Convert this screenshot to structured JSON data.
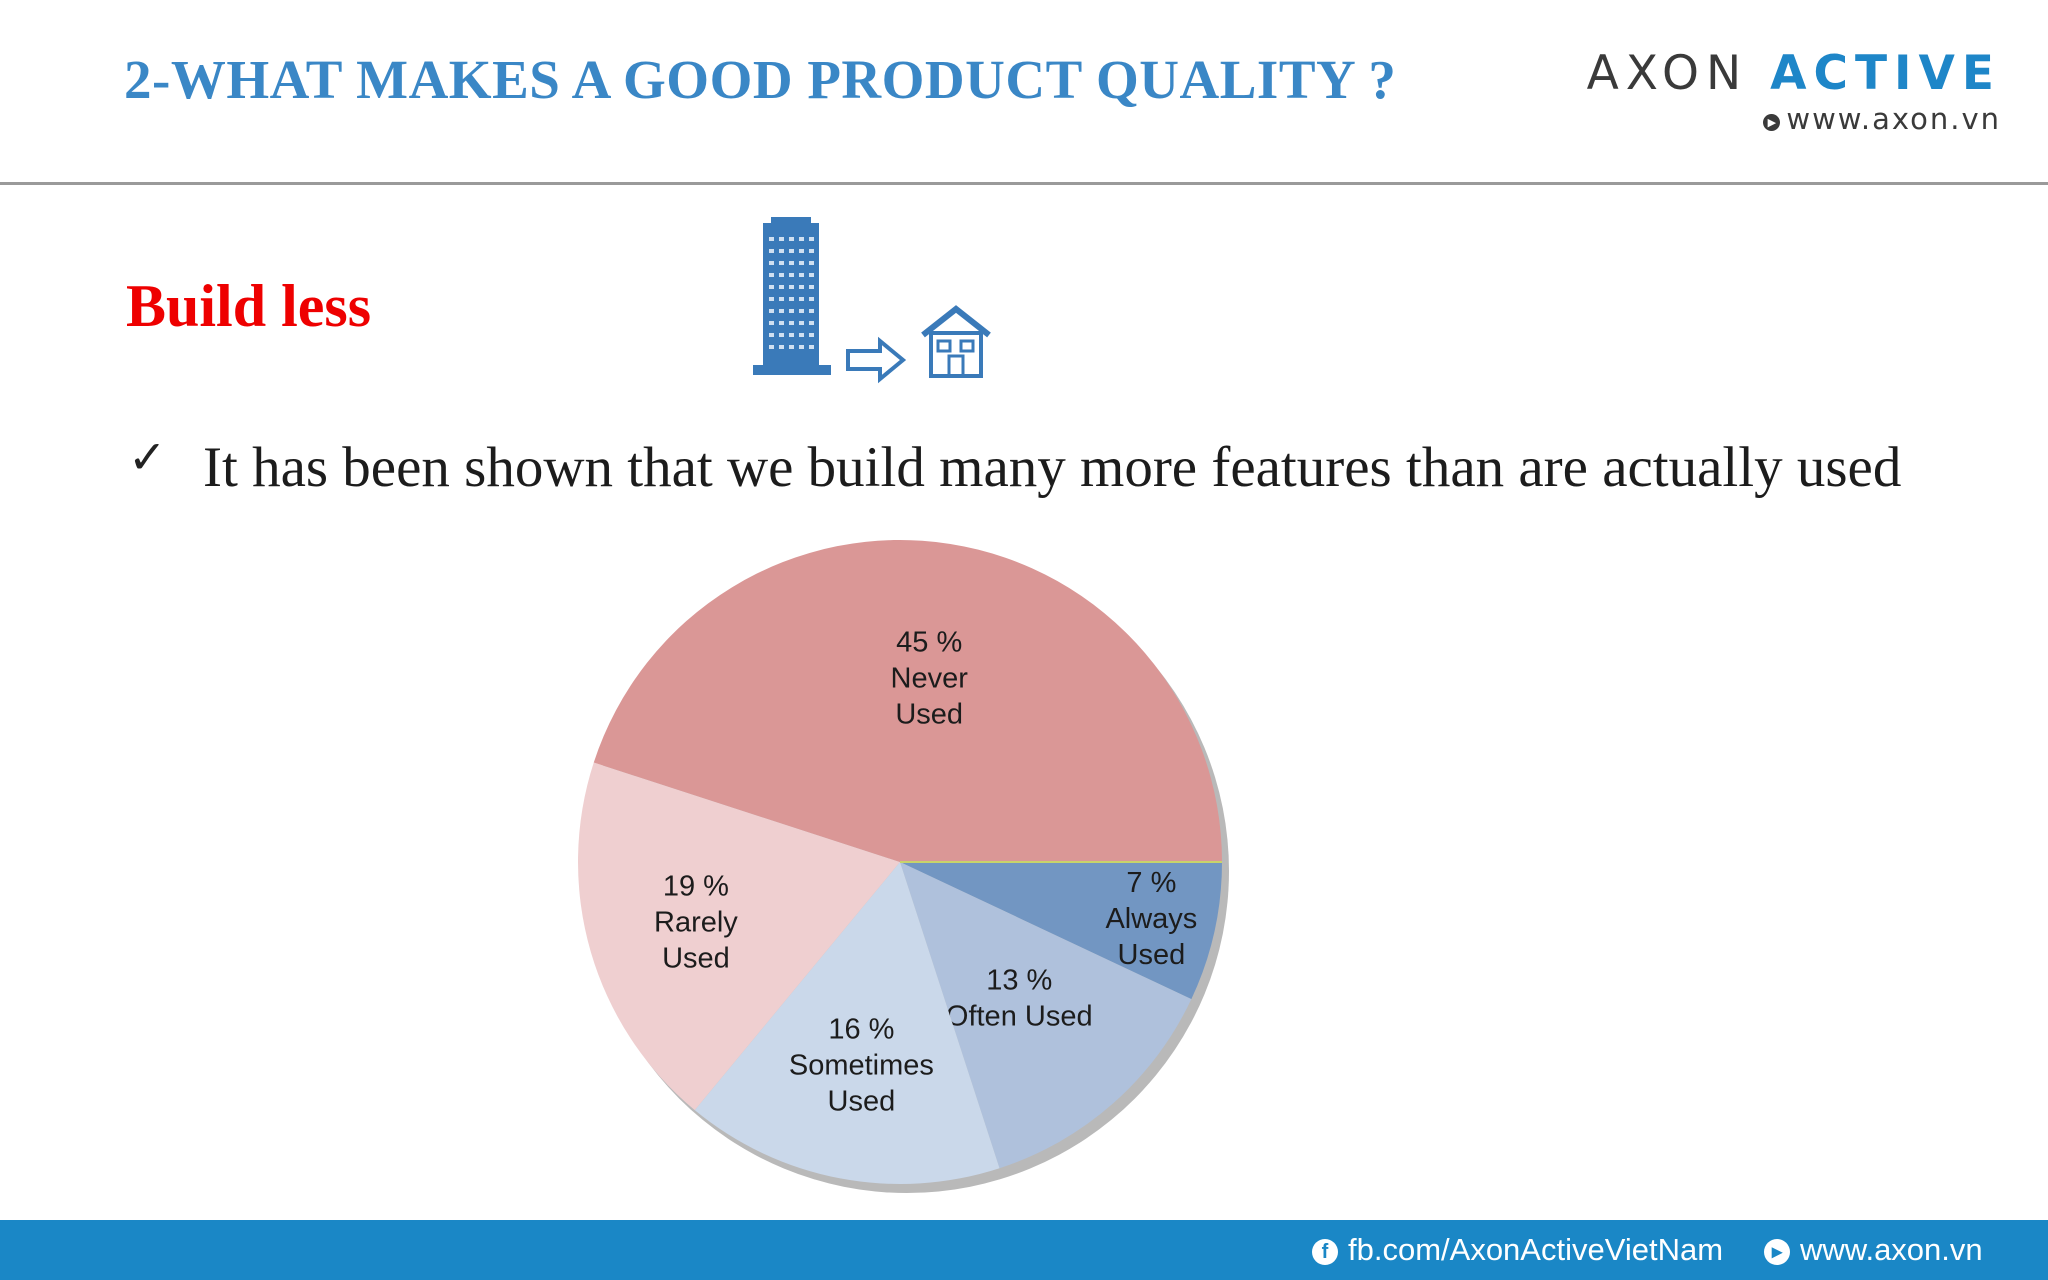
{
  "header": {
    "title": "2-WHAT MAKES A GOOD PRODUCT QUALITY ?",
    "logo": {
      "word1": "AXON",
      "word2": "ACTIVE",
      "url": "www.axon.vn"
    }
  },
  "content": {
    "subtitle": "Build less",
    "illustration_icons": [
      "skyscraper-icon",
      "right-arrow-icon",
      "house-icon"
    ],
    "bullet_mark": "✓",
    "bullet_text": "It has been shown that we build many more features than are actually used"
  },
  "chart_data": {
    "type": "pie",
    "slices": [
      {
        "label": "Always Used",
        "percent_text": "7 %",
        "value": 7,
        "color": "#7296c2"
      },
      {
        "label": "Often Used",
        "percent_text": "13 %",
        "value": 13,
        "color": "#afc1dc"
      },
      {
        "label": "Sometimes Used",
        "percent_text": "16 %",
        "value": 16,
        "color": "#cad8ea"
      },
      {
        "label": "Rarely Used",
        "percent_text": "19 %",
        "value": 19,
        "color": "#efcfd0"
      },
      {
        "label": "Never Used",
        "percent_text": "45 %",
        "value": 45,
        "color": "#da9796"
      }
    ],
    "label_lines": [
      [
        "7 %",
        "Always",
        "Used"
      ],
      [
        "13 %",
        "Often Used"
      ],
      [
        "16 %",
        "Sometimes",
        "Used"
      ],
      [
        "19 %",
        "Rarely",
        "Used"
      ],
      [
        "45 %",
        "Never",
        "Used"
      ]
    ]
  },
  "footer": {
    "facebook": "fb.com/AxonActiveVietNam",
    "website": "www.axon.vn",
    "colors": {
      "bar": "#1a87c6"
    }
  }
}
